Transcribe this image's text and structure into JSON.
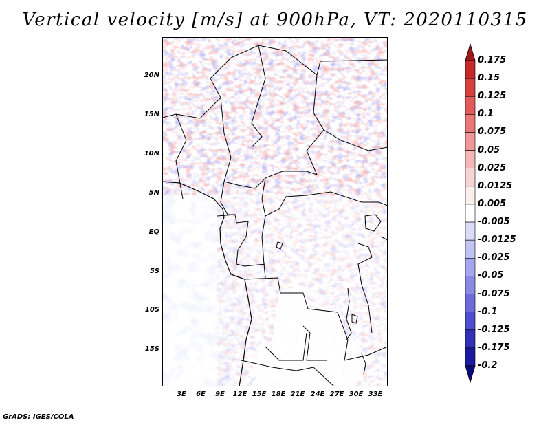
{
  "title": "Vertical velocity [m/s] at 900hPa, VT: 2020110315",
  "credit": "GrADS: IGES/COLA",
  "lat_labels": [
    "20N",
    "15N",
    "10N",
    "5N",
    "EQ",
    "5S",
    "10S",
    "15S"
  ],
  "lon_labels": [
    "3E",
    "6E",
    "9E",
    "12E",
    "15E",
    "18E",
    "21E",
    "24E",
    "27E",
    "30E",
    "33E"
  ],
  "colorbar": {
    "labels": [
      "0.175",
      "0.15",
      "0.125",
      "0.1",
      "0.075",
      "0.05",
      "0.025",
      "0.0125",
      "0.005",
      "-0.005",
      "-0.0125",
      "-0.025",
      "-0.05",
      "-0.075",
      "-0.1",
      "-0.125",
      "-0.175",
      "-0.2"
    ],
    "colors": [
      "#a01818",
      "#c52a2a",
      "#d84040",
      "#e35a5a",
      "#ea7878",
      "#f09898",
      "#f5b8b8",
      "#f9d4d4",
      "#fdeeee",
      "#ffffff",
      "#dcdcfa",
      "#c2c2f5",
      "#a6a6ee",
      "#8a8ae6",
      "#6c6cdc",
      "#4e4ece",
      "#3030b8",
      "#1a1aa0",
      "#0a0a80"
    ]
  }
}
